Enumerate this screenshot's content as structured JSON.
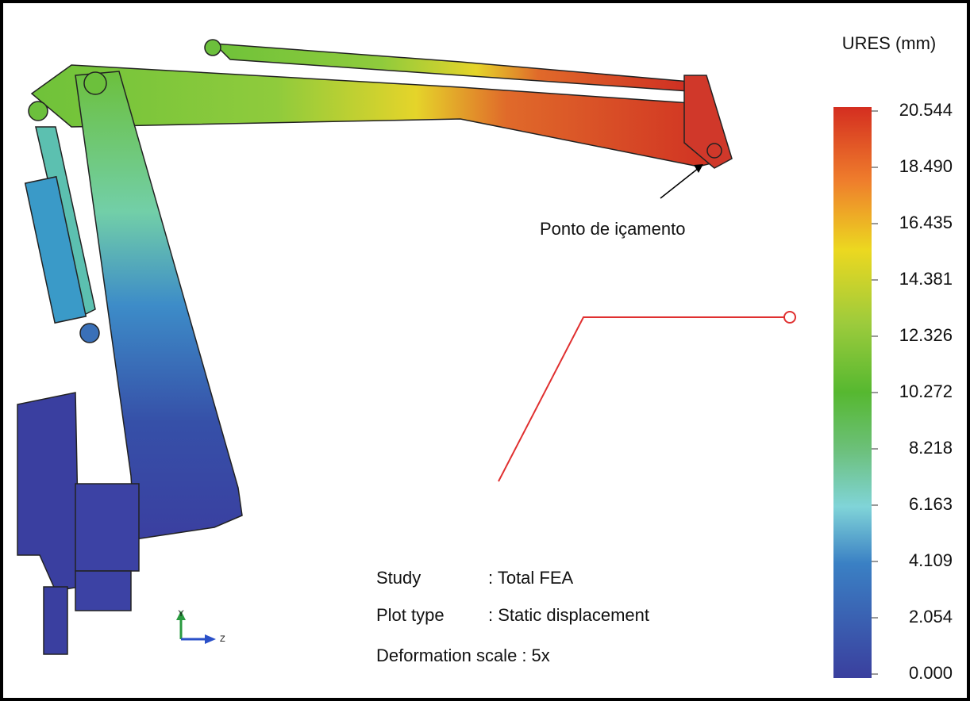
{
  "legend": {
    "title": "URES (mm)",
    "ticks": [
      "20.544",
      "18.490",
      "16.435",
      "14.381",
      "12.326",
      "10.272",
      "8.218",
      "6.163",
      "4.109",
      "2.054",
      "0.000"
    ]
  },
  "annotation": "Ponto de içamento",
  "info": [
    {
      "label": "Study",
      "value": ": Total FEA"
    },
    {
      "label": "Plot type",
      "value": ": Static displacement"
    },
    {
      "label": "Deformation scale",
      "value": ": 5x"
    }
  ],
  "triad": {
    "y": "Y",
    "z": "Z"
  }
}
